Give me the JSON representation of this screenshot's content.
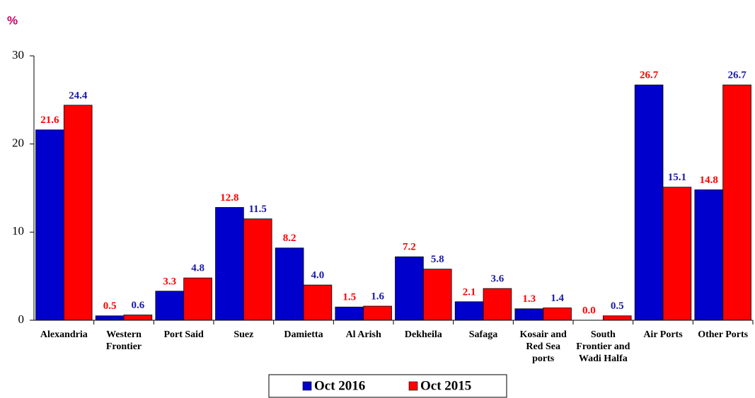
{
  "chart_data": {
    "type": "bar",
    "y_label": "%",
    "categories": [
      "Alexandria",
      "Western Frontier",
      "Port Said",
      "Suez",
      "Damietta",
      "Al Arish",
      "Dekheila",
      "Safaga",
      "Kosair and Red Sea ports",
      "South Frontier and Wadi Halfa",
      "Air Ports",
      "Other Ports"
    ],
    "series": [
      {
        "name": "Oct 2016",
        "color": "#0000cc",
        "label_color": "#ff0000",
        "values": [
          21.6,
          0.5,
          3.3,
          12.8,
          8.2,
          1.5,
          7.2,
          2.1,
          1.3,
          0,
          26.7,
          14.8
        ],
        "value_labels": [
          "21.6",
          "0.5",
          "3.3",
          "12.8",
          "8.2",
          "1.5",
          "7.2",
          "2.1",
          "1.3",
          "0.0",
          "26.7",
          "14.8"
        ]
      },
      {
        "name": "Oct 2015",
        "color": "#ff0000",
        "label_color": "#1a1aa6",
        "values": [
          24.4,
          0.6,
          4.8,
          11.5,
          4,
          1.6,
          5.8,
          3.6,
          1.4,
          0.5,
          15.1,
          26.7
        ],
        "value_labels": [
          "24.4",
          "0.6",
          "4.8",
          "11.5",
          "4.0",
          "1.6",
          "5.8",
          "3.6",
          "1.4",
          "0.5",
          "15.1",
          "26.7"
        ]
      }
    ],
    "ylim": [
      0,
      30
    ],
    "yticks": [
      0,
      10,
      20,
      30
    ],
    "grid": false,
    "legend": "bottom"
  }
}
